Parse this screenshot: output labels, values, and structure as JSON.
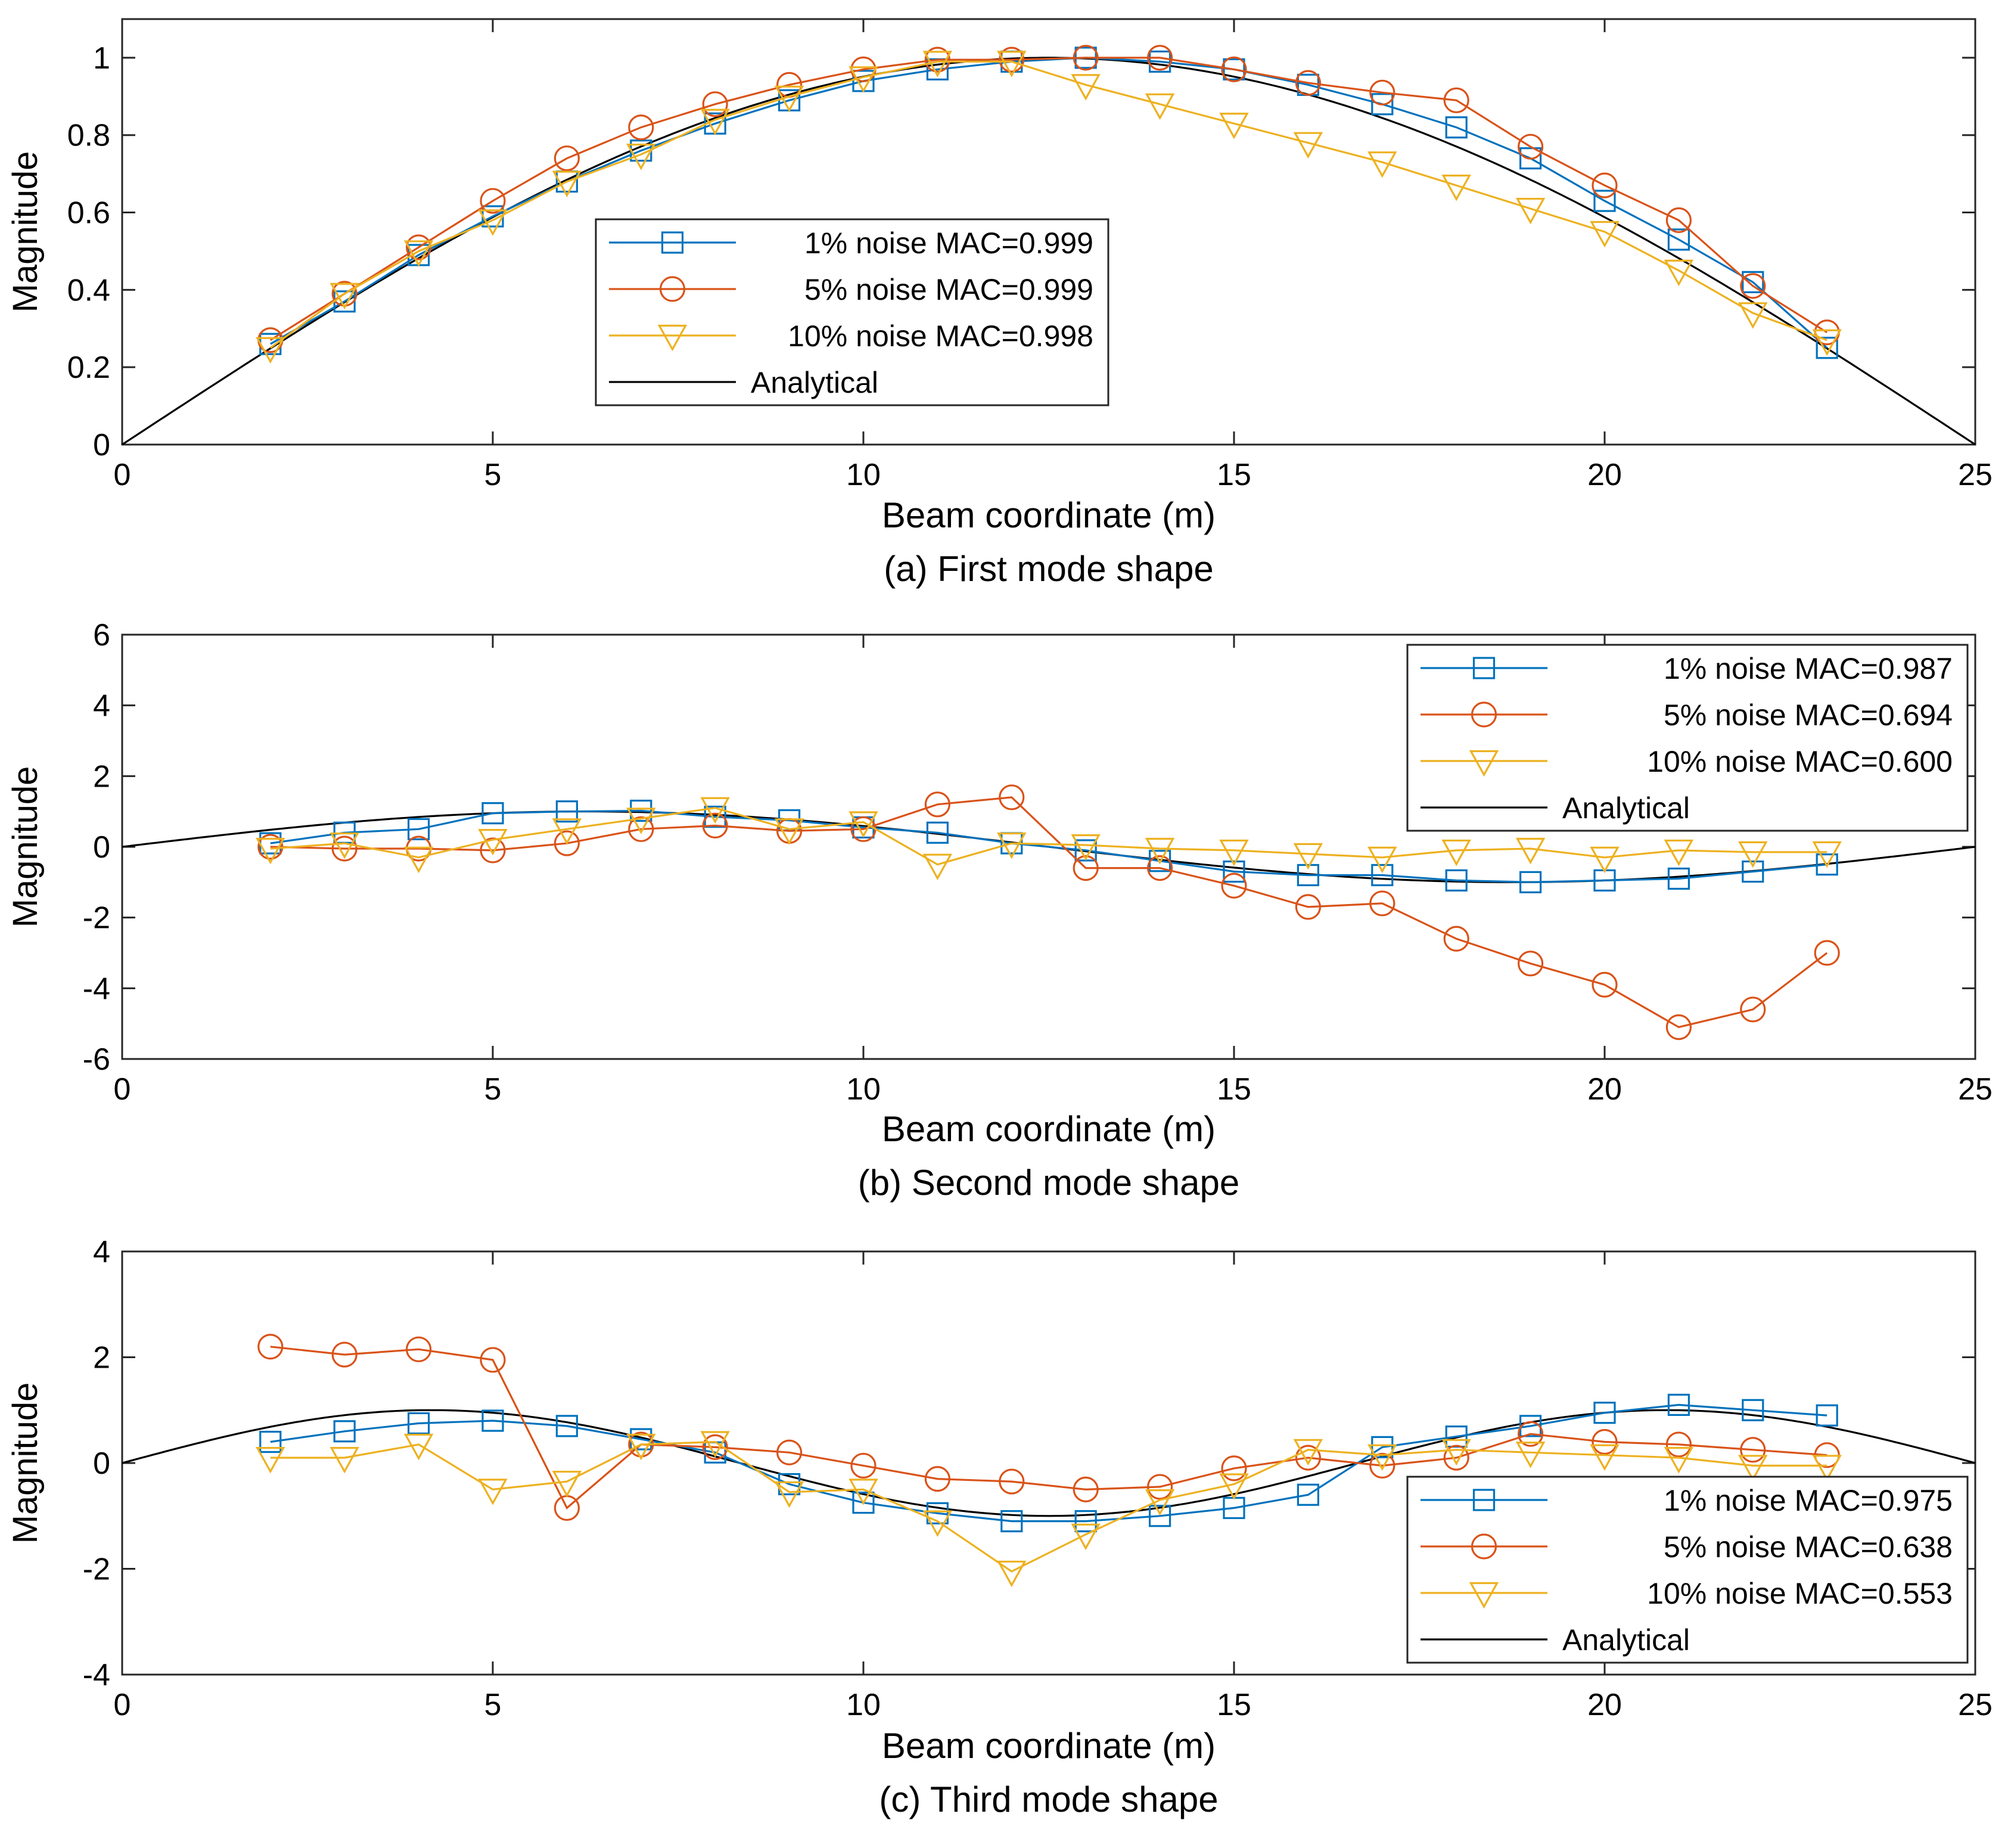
{
  "chart_data": [
    {
      "type": "line",
      "title": "",
      "caption": "(a) First mode shape",
      "xlabel": "Beam coordinate (m)",
      "ylabel": "Magnitude",
      "xlim": [
        0,
        25
      ],
      "ylim": [
        0,
        1.1
      ],
      "xticks": [
        0,
        5,
        10,
        15,
        20,
        25
      ],
      "yticks": [
        0,
        0.2,
        0.4,
        0.6,
        0.8,
        1
      ],
      "ytick_labels": [
        "0",
        "0.2",
        "0.4",
        "0.6",
        "0.8",
        "1"
      ],
      "grid": false,
      "legend_position": "bottom-center",
      "x": [
        2,
        3,
        4,
        5,
        6,
        7,
        8,
        9,
        10,
        11,
        12,
        13,
        14,
        15,
        16,
        17,
        18,
        19,
        20,
        21,
        22,
        23
      ],
      "analytical": {
        "name": "Analytical",
        "type": "sin",
        "cycles": 1
      },
      "series": [
        {
          "name": "1% noise MAC=0.999",
          "marker": "square",
          "color": "#0072BD",
          "values": [
            0.26,
            0.37,
            0.49,
            0.59,
            0.68,
            0.76,
            0.83,
            0.89,
            0.94,
            0.97,
            0.99,
            1.0,
            0.99,
            0.97,
            0.93,
            0.88,
            0.82,
            0.74,
            0.63,
            0.53,
            0.42,
            0.25
          ]
        },
        {
          "name": "5% noise MAC=0.999",
          "marker": "circle",
          "color": "#D95319",
          "values": [
            0.27,
            0.39,
            0.51,
            0.63,
            0.74,
            0.82,
            0.88,
            0.93,
            0.97,
            0.995,
            0.995,
            1.0,
            1.0,
            0.97,
            0.935,
            0.91,
            0.89,
            0.77,
            0.67,
            0.58,
            0.41,
            0.29
          ]
        },
        {
          "name": "10% noise MAC=0.998",
          "marker": "triangle-down",
          "color": "#EDB120",
          "values": [
            0.25,
            0.39,
            0.5,
            0.58,
            0.68,
            0.75,
            0.84,
            0.9,
            0.95,
            0.99,
            0.99,
            0.93,
            0.88,
            0.83,
            0.78,
            0.73,
            0.67,
            0.61,
            0.55,
            0.45,
            0.34,
            0.27
          ]
        }
      ]
    },
    {
      "type": "line",
      "title": "",
      "caption": "(b) Second mode shape",
      "xlabel": "Beam coordinate (m)",
      "ylabel": "Magnitude",
      "xlim": [
        0,
        25
      ],
      "ylim": [
        -6,
        6
      ],
      "xticks": [
        0,
        5,
        10,
        15,
        20,
        25
      ],
      "yticks": [
        -6,
        -4,
        -2,
        0,
        2,
        4,
        6
      ],
      "ytick_labels": [
        "-6",
        "-4",
        "-2",
        "0",
        "2",
        "4",
        "6"
      ],
      "grid": false,
      "legend_position": "top-right",
      "x": [
        2,
        3,
        4,
        5,
        6,
        7,
        8,
        9,
        10,
        11,
        12,
        13,
        14,
        15,
        16,
        17,
        18,
        19,
        20,
        21,
        22,
        23
      ],
      "analytical": {
        "name": "Analytical",
        "type": "sin",
        "cycles": 2
      },
      "series": [
        {
          "name": "1% noise MAC=0.987",
          "marker": "square",
          "color": "#0072BD",
          "values": [
            0.1,
            0.4,
            0.5,
            0.95,
            1.0,
            1.02,
            0.85,
            0.75,
            0.55,
            0.4,
            0.1,
            -0.1,
            -0.4,
            -0.7,
            -0.8,
            -0.8,
            -0.95,
            -1.0,
            -0.95,
            -0.9,
            -0.7,
            -0.5
          ]
        },
        {
          "name": "5% noise MAC=0.694",
          "marker": "circle",
          "color": "#D95319",
          "values": [
            0.0,
            -0.05,
            -0.05,
            -0.1,
            0.1,
            0.5,
            0.6,
            0.45,
            0.5,
            1.2,
            1.4,
            -0.6,
            -0.6,
            -1.1,
            -1.7,
            -1.6,
            -2.6,
            -3.3,
            -3.9,
            -5.1,
            -4.6,
            -3.0
          ]
        },
        {
          "name": "10% noise MAC=0.600",
          "marker": "triangle-down",
          "color": "#EDB120",
          "values": [
            -0.05,
            0.1,
            -0.3,
            0.2,
            0.5,
            0.8,
            1.1,
            0.5,
            0.7,
            -0.5,
            0.1,
            0.05,
            -0.05,
            -0.1,
            -0.2,
            -0.3,
            -0.1,
            -0.05,
            -0.3,
            -0.1,
            -0.15,
            -0.15
          ]
        }
      ]
    },
    {
      "type": "line",
      "title": "",
      "caption": "(c) Third mode shape",
      "xlabel": "Beam coordinate (m)",
      "ylabel": "Magnitude",
      "xlim": [
        0,
        25
      ],
      "ylim": [
        -4,
        4
      ],
      "xticks": [
        0,
        5,
        10,
        15,
        20,
        25
      ],
      "yticks": [
        -4,
        -2,
        0,
        2,
        4
      ],
      "ytick_labels": [
        "-4",
        "-2",
        "0",
        "2",
        "4"
      ],
      "grid": false,
      "legend_position": "bottom-right",
      "x": [
        2,
        3,
        4,
        5,
        6,
        7,
        8,
        9,
        10,
        11,
        12,
        13,
        14,
        15,
        16,
        17,
        18,
        19,
        20,
        21,
        22,
        23
      ],
      "analytical": {
        "name": "Analytical",
        "type": "sin",
        "cycles": 3
      },
      "series": [
        {
          "name": "1% noise MAC=0.975",
          "marker": "square",
          "color": "#0072BD",
          "values": [
            0.4,
            0.6,
            0.75,
            0.8,
            0.7,
            0.45,
            0.2,
            -0.4,
            -0.75,
            -0.95,
            -1.1,
            -1.1,
            -1.0,
            -0.85,
            -0.6,
            0.3,
            0.5,
            0.7,
            0.95,
            1.1,
            1.0,
            0.9
          ]
        },
        {
          "name": "5% noise MAC=0.638",
          "marker": "circle",
          "color": "#D95319",
          "values": [
            2.2,
            2.05,
            2.15,
            1.95,
            -0.85,
            0.35,
            0.3,
            0.2,
            -0.05,
            -0.3,
            -0.35,
            -0.5,
            -0.45,
            -0.1,
            0.1,
            -0.05,
            0.1,
            0.55,
            0.4,
            0.35,
            0.25,
            0.15
          ]
        },
        {
          "name": "10% noise MAC=0.553",
          "marker": "triangle-down",
          "color": "#EDB120",
          "values": [
            0.1,
            0.1,
            0.35,
            -0.5,
            -0.35,
            0.35,
            0.4,
            -0.55,
            -0.5,
            -1.1,
            -2.05,
            -1.35,
            -0.7,
            -0.4,
            0.25,
            0.15,
            0.25,
            0.2,
            0.15,
            0.1,
            -0.05,
            -0.05
          ]
        }
      ]
    }
  ]
}
